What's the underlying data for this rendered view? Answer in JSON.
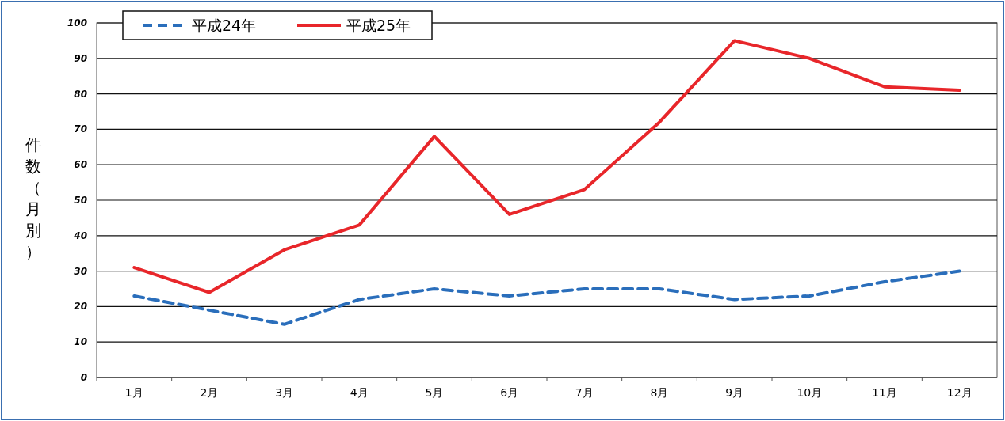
{
  "chart_data": {
    "type": "line",
    "ylabel": "件数（月別）",
    "categories": [
      "1月",
      "2月",
      "3月",
      "4月",
      "5月",
      "6月",
      "7月",
      "8月",
      "9月",
      "10月",
      "11月",
      "12月"
    ],
    "series": [
      {
        "name": "平成24年",
        "color": "#2a6ebb",
        "line_style": "dashed",
        "values": [
          23,
          19,
          15,
          22,
          25,
          23,
          25,
          25,
          22,
          23,
          27,
          30
        ]
      },
      {
        "name": "平成25年",
        "color": "#e8262a",
        "line_style": "solid",
        "values": [
          31,
          24,
          36,
          43,
          68,
          46,
          53,
          72,
          95,
          90,
          82,
          81
        ]
      }
    ],
    "ylim": [
      0,
      100
    ],
    "yticks": [
      0,
      10,
      20,
      30,
      40,
      50,
      60,
      70,
      80,
      90,
      100
    ],
    "grid": "y",
    "legend": "top left"
  }
}
